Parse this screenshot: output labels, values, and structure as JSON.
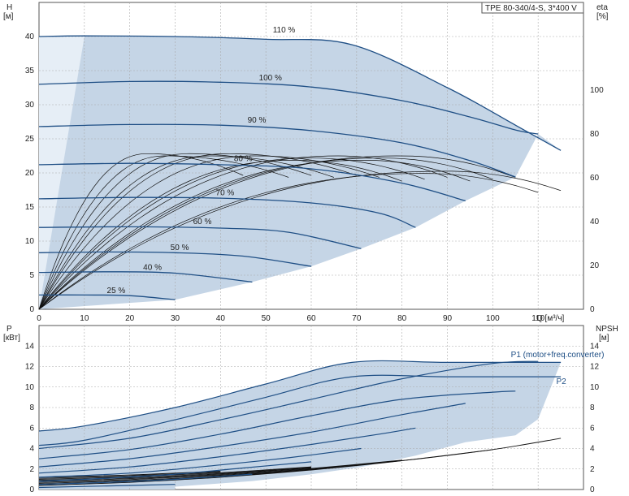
{
  "chart_data": [
    {
      "type": "line",
      "title": "TPE 80-340/4-S, 3*400 V",
      "xlabel": "Q [м³/ч]",
      "ylabel_left_name": "H",
      "ylabel_left_unit": "[м]",
      "ylabel_right_name": "eta",
      "ylabel_right_unit": "[%]",
      "xlim": [
        0,
        120
      ],
      "ylim": [
        0,
        45
      ],
      "ylim_right": [
        0,
        140
      ],
      "grid": true,
      "x_ticks": [
        0,
        10,
        20,
        30,
        40,
        50,
        60,
        70,
        80,
        90,
        100,
        110
      ],
      "y_ticks": [
        0,
        5,
        10,
        15,
        20,
        25,
        30,
        35,
        40
      ],
      "y_ticks_right": [
        0,
        20,
        40,
        60,
        80,
        100
      ],
      "colors": {
        "curve": "#1f4f85",
        "area": "#c5d5e6",
        "area_light": "#e6eef6",
        "eta": "#111111"
      },
      "series": [
        {
          "name": "110 %",
          "x": [
            0,
            10,
            30,
            50,
            69,
            90,
            105,
            115
          ],
          "values": [
            40,
            40.1,
            40.0,
            39.6,
            38.8,
            32.5,
            27,
            23.3
          ],
          "label_x": 54,
          "label_y": 40.6
        },
        {
          "name": "100 %",
          "x": [
            0,
            20,
            40,
            60,
            80,
            95,
            105,
            110
          ],
          "values": [
            33,
            33.4,
            33.3,
            32.6,
            30.6,
            28.2,
            26.3,
            25.7
          ],
          "label_x": 51,
          "label_y": 33.6
        },
        {
          "name": "90 %",
          "x": [
            0,
            20,
            40,
            60,
            80,
            95,
            105
          ],
          "values": [
            26.8,
            27.1,
            27.0,
            26.2,
            24.4,
            21.8,
            19.4
          ],
          "label_x": 48,
          "label_y": 27.4
        },
        {
          "name": "80 %",
          "x": [
            0,
            20,
            40,
            60,
            80,
            94
          ],
          "values": [
            21.2,
            21.4,
            21.2,
            20.6,
            18.5,
            15.9
          ],
          "label_x": 45,
          "label_y": 21.7
        },
        {
          "name": "70 %",
          "x": [
            0,
            20,
            40,
            60,
            75,
            83
          ],
          "values": [
            16.2,
            16.4,
            16.3,
            15.6,
            14.1,
            12.0
          ],
          "label_x": 41,
          "label_y": 16.7
        },
        {
          "name": "60 %",
          "x": [
            0,
            20,
            40,
            55,
            71
          ],
          "values": [
            12.0,
            12.1,
            11.9,
            11.3,
            8.9
          ],
          "label_x": 36,
          "label_y": 12.5
        },
        {
          "name": "50 %",
          "x": [
            0,
            15,
            30,
            45,
            60
          ],
          "values": [
            8.3,
            8.4,
            8.3,
            7.8,
            6.3
          ],
          "label_x": 31,
          "label_y": 8.7
        },
        {
          "name": "40 %",
          "x": [
            0,
            15,
            30,
            47
          ],
          "values": [
            5.4,
            5.5,
            5.3,
            4.0
          ],
          "label_x": 25,
          "label_y": 5.8
        },
        {
          "name": "25 %",
          "x": [
            0,
            10,
            20,
            30
          ],
          "values": [
            2.1,
            2.1,
            2.0,
            1.4
          ],
          "label_x": 17,
          "label_y": 2.4
        }
      ],
      "eta_curves": [
        {
          "qmax": 115,
          "peak": 63,
          "peak_q": 90
        },
        {
          "qmax": 110,
          "peak": 62,
          "peak_q": 85
        },
        {
          "qmax": 105,
          "peak": 70,
          "peak_q": 80
        },
        {
          "qmax": 100,
          "peak": 69,
          "peak_q": 76
        },
        {
          "qmax": 95,
          "peak": 68,
          "peak_q": 72
        },
        {
          "qmax": 90,
          "peak": 70,
          "peak_q": 66
        },
        {
          "qmax": 85,
          "peak": 69,
          "peak_q": 60
        },
        {
          "qmax": 80,
          "peak": 68,
          "peak_q": 56
        },
        {
          "qmax": 75,
          "peak": 70,
          "peak_q": 48
        },
        {
          "qmax": 70,
          "peak": 71,
          "peak_q": 42
        },
        {
          "qmax": 65,
          "peak": 70,
          "peak_q": 38
        },
        {
          "qmax": 60,
          "peak": 71,
          "peak_q": 33
        },
        {
          "qmax": 55,
          "peak": 70,
          "peak_q": 28
        },
        {
          "qmax": 45,
          "peak": 71,
          "peak_q": 24
        }
      ]
    },
    {
      "type": "line",
      "xlabel": "",
      "ylabel_left_name": "P",
      "ylabel_left_unit": "[кВт]",
      "ylabel_right_name": "NPSH",
      "ylabel_right_unit": "[м]",
      "xlim": [
        0,
        120
      ],
      "ylim": [
        0,
        16
      ],
      "ylim_right": [
        0,
        16
      ],
      "grid": true,
      "y_ticks": [
        0,
        2,
        4,
        6,
        8,
        10,
        12,
        14
      ],
      "y_ticks_right": [
        0,
        2,
        4,
        6,
        8,
        10,
        12,
        14
      ],
      "series": [
        {
          "name": "P1 (motor+freq.converter)",
          "x": [
            0,
            10,
            30,
            50,
            69,
            90,
            115
          ],
          "values": [
            5.7,
            6.2,
            8.0,
            10.3,
            12.4,
            12.4,
            12.4
          ],
          "label_x": 104,
          "label_y": 12.9
        },
        {
          "name": "P2",
          "x": [
            0,
            10,
            30,
            50,
            69,
            90,
            115
          ],
          "values": [
            4.3,
            4.8,
            6.8,
            9.0,
            11.0,
            11.0,
            11.0
          ],
          "label_x": 114,
          "label_y": 10.3
        },
        {
          "name": "",
          "x": [
            0,
            20,
            40,
            60,
            80,
            100,
            110
          ],
          "values": [
            4.0,
            5.0,
            6.8,
            8.8,
            10.8,
            12.3,
            12.5
          ]
        },
        {
          "name": "",
          "x": [
            0,
            20,
            40,
            60,
            80,
            100,
            105
          ],
          "values": [
            3.0,
            3.9,
            5.4,
            7.2,
            8.8,
            9.5,
            9.6
          ]
        },
        {
          "name": "",
          "x": [
            0,
            20,
            40,
            60,
            80,
            94
          ],
          "values": [
            2.2,
            3.0,
            4.2,
            5.6,
            7.3,
            8.4
          ]
        },
        {
          "name": "",
          "x": [
            0,
            20,
            40,
            60,
            75,
            83
          ],
          "values": [
            1.6,
            2.2,
            3.2,
            4.4,
            5.4,
            6.0
          ]
        },
        {
          "name": "",
          "x": [
            0,
            20,
            40,
            55,
            71
          ],
          "values": [
            1.2,
            1.6,
            2.4,
            3.1,
            4.0
          ]
        },
        {
          "name": "",
          "x": [
            0,
            15,
            30,
            45,
            60
          ],
          "values": [
            0.8,
            1.1,
            1.5,
            2.1,
            2.7
          ]
        },
        {
          "name": "",
          "x": [
            0,
            15,
            30,
            47
          ],
          "values": [
            0.5,
            0.7,
            1.0,
            1.5
          ]
        },
        {
          "name": "",
          "x": [
            0,
            10,
            20,
            30
          ],
          "values": [
            0.2,
            0.3,
            0.4,
            0.5
          ]
        }
      ],
      "npsh": {
        "x": [
          0,
          20,
          40,
          60,
          80,
          100,
          115
        ],
        "values": [
          0.4,
          0.7,
          1.2,
          1.9,
          2.8,
          3.9,
          5.0
        ]
      }
    }
  ]
}
